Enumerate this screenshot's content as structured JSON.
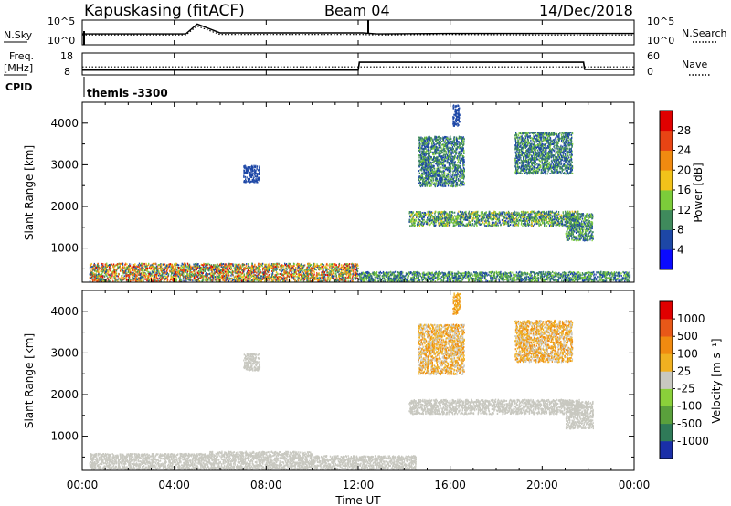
{
  "header": {
    "station": "Kapuskasing (fitACF)",
    "beam": "Beam 04",
    "date": "14/Dec/2018"
  },
  "labels": {
    "nsky": "N.Sky",
    "nsearch": "N.Search",
    "freq": "Freq.",
    "freq_unit": "[MHz]",
    "nave": "Nave",
    "cpid": "CPID",
    "cpid_value": "themis -3300"
  },
  "ticks": {
    "noise_left": [
      "10^5",
      "10^0"
    ],
    "noise_right": [
      "10^5",
      "10^0"
    ],
    "freq_left": [
      "18",
      "8"
    ],
    "nave_right": [
      "60",
      "0"
    ],
    "range": [
      "1000",
      "2000",
      "3000",
      "4000"
    ],
    "time": [
      "00:00",
      "04:00",
      "08:00",
      "12:00",
      "16:00",
      "20:00",
      "00:00"
    ],
    "power_bar": [
      "4",
      "8",
      "12",
      "16",
      "20",
      "24",
      "28"
    ],
    "velocity_bar": [
      "1000",
      "500",
      "100",
      "25",
      "-25",
      "-100",
      "-500",
      "-1000"
    ]
  },
  "axes": {
    "ylabel": "Slant Range [km]",
    "xlabel": "Time UT",
    "power_label": "Power [dB]",
    "velocity_label": "Velocity [m s⁻¹]"
  },
  "colors": {
    "power": [
      "#0a0aff",
      "#1d47a6",
      "#3f8a5c",
      "#7ccc3a",
      "#f2c21a",
      "#f08a10",
      "#e84414",
      "#e00000"
    ],
    "velocity": [
      "#1a2fa8",
      "#2f7a58",
      "#5aa03c",
      "#8ad03a",
      "#c8c8c0",
      "#f0b020",
      "#f08a10",
      "#e85818",
      "#e00000"
    ]
  },
  "chart_data": [
    {
      "type": "line",
      "title": "N.Sky / N.Search",
      "x": [
        0,
        4.5,
        5.0,
        6.0,
        12.2,
        12.8,
        16,
        20,
        24
      ],
      "series": [
        {
          "name": "N.Sky",
          "values": [
            2.2,
            2.2,
            4.2,
            2.4,
            2.4,
            2.2,
            2.3,
            2.3,
            2.3
          ]
        },
        {
          "name": "N.Search",
          "values": [
            2.0,
            2.0,
            3.8,
            2.1,
            2.1,
            2.0,
            2.1,
            2.0,
            2.0
          ]
        }
      ],
      "ylim": [
        0,
        5
      ]
    },
    {
      "type": "line",
      "title": "Freq. / Nave",
      "x": [
        0,
        12.0,
        12.05,
        21.8,
        21.85,
        24
      ],
      "series": [
        {
          "name": "Freq.",
          "values": [
            10.2,
            10.2,
            13.8,
            13.8,
            10.5,
            10.5
          ]
        },
        {
          "name": "Nave",
          "values": [
            22,
            22,
            22,
            22,
            22,
            22
          ]
        }
      ],
      "ylim": [
        8,
        18
      ]
    },
    {
      "type": "heatmap",
      "title": "Power [dB]",
      "xlabel": "Time UT",
      "ylabel": "Slant Range [km]",
      "xlim": [
        0,
        24
      ],
      "ylim": [
        180,
        4500
      ],
      "color_scale": [
        0,
        32
      ],
      "regions": [
        {
          "t0": 0.3,
          "t1": 12.0,
          "r0": 220,
          "r1": 650,
          "v0": 4,
          "v1": 30
        },
        {
          "t0": 12.0,
          "t1": 23.8,
          "r0": 220,
          "r1": 450,
          "v0": 4,
          "v1": 16
        },
        {
          "t0": 14.2,
          "t1": 21.6,
          "r0": 1550,
          "r1": 1900,
          "v0": 4,
          "v1": 18
        },
        {
          "t0": 21.0,
          "t1": 22.2,
          "r0": 1200,
          "r1": 1850,
          "v0": 4,
          "v1": 16
        },
        {
          "t0": 14.6,
          "t1": 16.6,
          "r0": 2500,
          "r1": 3700,
          "v0": 4,
          "v1": 14
        },
        {
          "t0": 18.8,
          "t1": 21.3,
          "r0": 2800,
          "r1": 3800,
          "v0": 4,
          "v1": 14
        },
        {
          "t0": 7.0,
          "t1": 7.7,
          "r0": 2600,
          "r1": 3000,
          "v0": 4,
          "v1": 8
        },
        {
          "t0": 16.1,
          "t1": 16.4,
          "r0": 3950,
          "r1": 4450,
          "v0": 4,
          "v1": 8
        }
      ]
    },
    {
      "type": "heatmap",
      "title": "Velocity [m s⁻¹]",
      "xlabel": "Time UT",
      "ylabel": "Slant Range [km]",
      "xlim": [
        0,
        24
      ],
      "ylim": [
        180,
        4500
      ],
      "color_scale": [
        1000,
        -1000
      ],
      "regions": [
        {
          "t0": 0.3,
          "t1": 5.5,
          "r0": 220,
          "r1": 600,
          "v0": -100,
          "v1": 25
        },
        {
          "t0": 5.5,
          "t1": 10.0,
          "r0": 220,
          "r1": 650,
          "v0": 25,
          "v1": 100
        },
        {
          "t0": 10.0,
          "t1": 14.5,
          "r0": 220,
          "r1": 550,
          "v0": -100,
          "v1": -25
        },
        {
          "t0": 14.2,
          "t1": 21.6,
          "r0": 1550,
          "r1": 1900,
          "v0": -25,
          "v1": 25
        },
        {
          "t0": 21.0,
          "t1": 22.2,
          "r0": 1200,
          "r1": 1850,
          "v0": -25,
          "v1": 100
        },
        {
          "t0": 14.6,
          "t1": 16.6,
          "r0": 2500,
          "r1": 3700,
          "v0": -500,
          "v1": 100
        },
        {
          "t0": 18.8,
          "t1": 21.3,
          "r0": 2800,
          "r1": 3800,
          "v0": -500,
          "v1": 100
        },
        {
          "t0": 7.0,
          "t1": 7.7,
          "r0": 2600,
          "r1": 3000,
          "v0": -25,
          "v1": 25
        },
        {
          "t0": 16.1,
          "t1": 16.4,
          "r0": 3950,
          "r1": 4450,
          "v0": -500,
          "v1": -100
        }
      ]
    }
  ]
}
